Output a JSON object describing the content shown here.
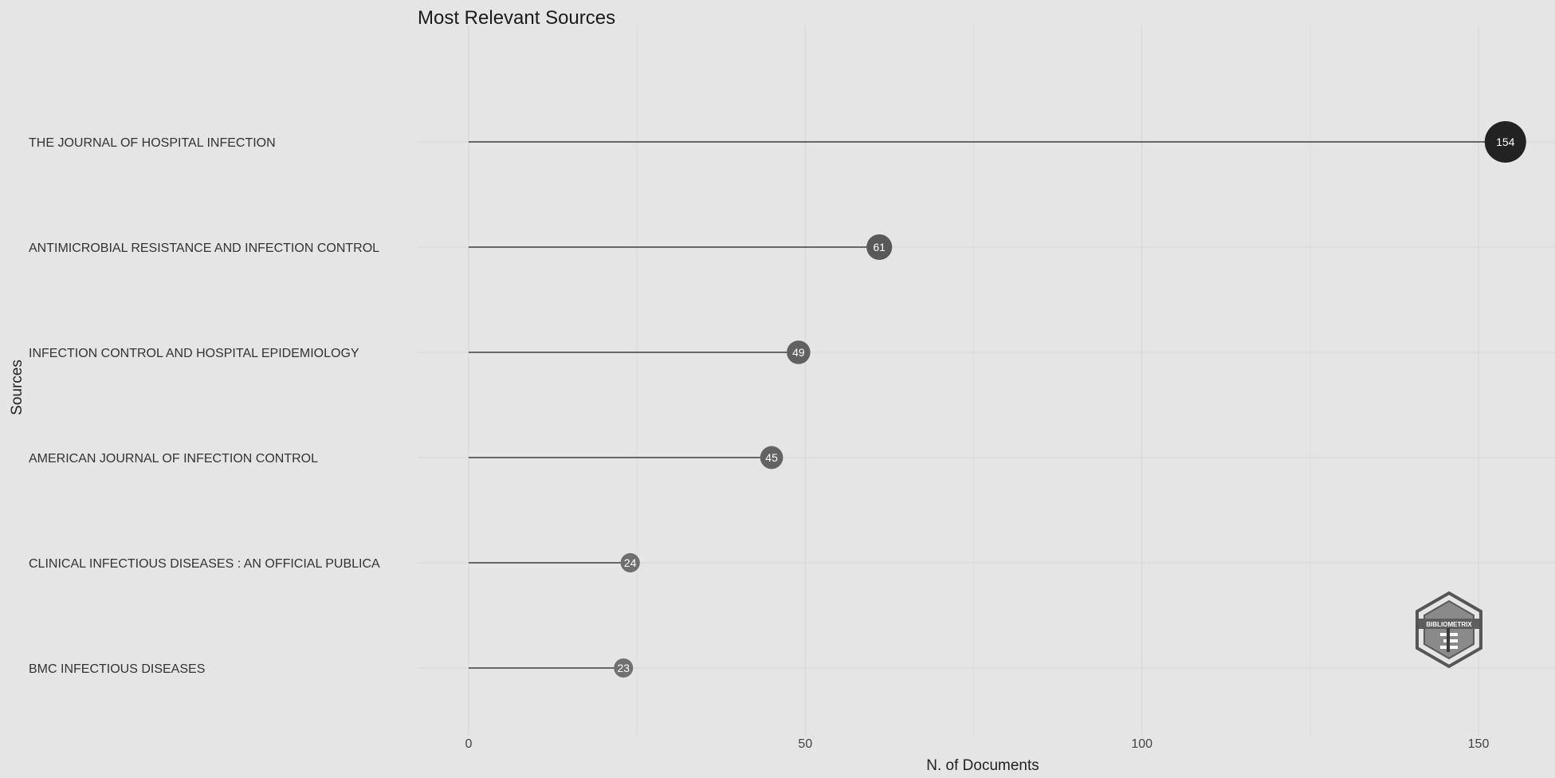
{
  "chart_data": {
    "type": "lollipop",
    "title": "Most Relevant Sources",
    "xlabel": "N. of Documents",
    "ylabel": "Sources",
    "categories": [
      "THE JOURNAL OF HOSPITAL INFECTION",
      "ANTIMICROBIAL RESISTANCE AND INFECTION CONTROL",
      "INFECTION CONTROL AND HOSPITAL EPIDEMIOLOGY",
      "AMERICAN JOURNAL OF INFECTION CONTROL",
      "CLINICAL INFECTIOUS DISEASES : AN OFFICIAL PUBLICA",
      "BMC INFECTIOUS DISEASES"
    ],
    "values": [
      154,
      61,
      49,
      45,
      24,
      23
    ],
    "xlim": [
      0,
      160
    ],
    "xticks": [
      0,
      50,
      100,
      150
    ],
    "grid": true,
    "colors": {
      "background": "#e5e5e5",
      "point_dark": "#222222",
      "point_light": "#6e6e6e",
      "stem": "#3c3c3c"
    }
  },
  "watermark": {
    "text": "BIBLIOMETRIX",
    "icon": "bibliometrix-logo-icon"
  }
}
